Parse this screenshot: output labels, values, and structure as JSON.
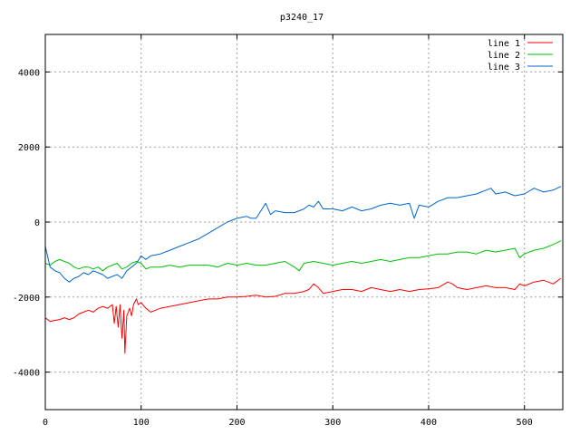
{
  "chart_data": {
    "type": "line",
    "title": "p3240_17",
    "xlabel": "",
    "ylabel": "",
    "xlim": [
      0,
      540
    ],
    "ylim": [
      -5000,
      5000
    ],
    "x_ticks": [
      0,
      100,
      200,
      300,
      400,
      500
    ],
    "y_ticks": [
      -4000,
      -2000,
      0,
      2000,
      4000
    ],
    "x_tick_labels": [
      "0",
      "100",
      "200",
      "300",
      "400",
      "500"
    ],
    "y_tick_labels": [
      "-4000",
      "-2000",
      "0",
      "2000",
      "4000"
    ],
    "grid": true,
    "legend_position": "top-right",
    "series": [
      {
        "name": "line 1",
        "color": "#ff0000",
        "points": [
          [
            0,
            -2550
          ],
          [
            5,
            -2650
          ],
          [
            10,
            -2620
          ],
          [
            15,
            -2600
          ],
          [
            20,
            -2550
          ],
          [
            25,
            -2600
          ],
          [
            30,
            -2550
          ],
          [
            35,
            -2450
          ],
          [
            40,
            -2400
          ],
          [
            45,
            -2350
          ],
          [
            50,
            -2400
          ],
          [
            55,
            -2300
          ],
          [
            60,
            -2250
          ],
          [
            65,
            -2300
          ],
          [
            70,
            -2200
          ],
          [
            72,
            -2700
          ],
          [
            74,
            -2250
          ],
          [
            76,
            -2800
          ],
          [
            78,
            -2200
          ],
          [
            80,
            -3100
          ],
          [
            82,
            -2350
          ],
          [
            83,
            -3500
          ],
          [
            85,
            -2500
          ],
          [
            88,
            -2300
          ],
          [
            90,
            -2500
          ],
          [
            92,
            -2200
          ],
          [
            95,
            -2050
          ],
          [
            97,
            -2200
          ],
          [
            100,
            -2150
          ],
          [
            105,
            -2300
          ],
          [
            110,
            -2400
          ],
          [
            115,
            -2350
          ],
          [
            120,
            -2300
          ],
          [
            130,
            -2250
          ],
          [
            140,
            -2200
          ],
          [
            150,
            -2150
          ],
          [
            160,
            -2100
          ],
          [
            170,
            -2050
          ],
          [
            180,
            -2050
          ],
          [
            190,
            -2000
          ],
          [
            200,
            -2000
          ],
          [
            210,
            -1980
          ],
          [
            220,
            -1950
          ],
          [
            230,
            -2000
          ],
          [
            240,
            -1980
          ],
          [
            250,
            -1900
          ],
          [
            260,
            -1900
          ],
          [
            270,
            -1850
          ],
          [
            275,
            -1800
          ],
          [
            280,
            -1650
          ],
          [
            285,
            -1750
          ],
          [
            290,
            -1900
          ],
          [
            300,
            -1850
          ],
          [
            310,
            -1800
          ],
          [
            320,
            -1800
          ],
          [
            330,
            -1850
          ],
          [
            340,
            -1750
          ],
          [
            350,
            -1800
          ],
          [
            360,
            -1850
          ],
          [
            370,
            -1800
          ],
          [
            380,
            -1850
          ],
          [
            390,
            -1800
          ],
          [
            400,
            -1780
          ],
          [
            410,
            -1750
          ],
          [
            420,
            -1600
          ],
          [
            425,
            -1650
          ],
          [
            430,
            -1750
          ],
          [
            440,
            -1800
          ],
          [
            450,
            -1750
          ],
          [
            460,
            -1700
          ],
          [
            470,
            -1750
          ],
          [
            480,
            -1750
          ],
          [
            490,
            -1800
          ],
          [
            495,
            -1650
          ],
          [
            500,
            -1700
          ],
          [
            510,
            -1600
          ],
          [
            520,
            -1550
          ],
          [
            530,
            -1650
          ],
          [
            538,
            -1500
          ]
        ]
      },
      {
        "name": "line 2",
        "color": "#00c000",
        "points": [
          [
            0,
            -1100
          ],
          [
            5,
            -1150
          ],
          [
            10,
            -1050
          ],
          [
            15,
            -1000
          ],
          [
            20,
            -1050
          ],
          [
            25,
            -1100
          ],
          [
            30,
            -1200
          ],
          [
            35,
            -1250
          ],
          [
            40,
            -1200
          ],
          [
            45,
            -1200
          ],
          [
            50,
            -1250
          ],
          [
            55,
            -1200
          ],
          [
            60,
            -1300
          ],
          [
            65,
            -1200
          ],
          [
            70,
            -1150
          ],
          [
            75,
            -1100
          ],
          [
            80,
            -1250
          ],
          [
            85,
            -1200
          ],
          [
            90,
            -1100
          ],
          [
            95,
            -1050
          ],
          [
            100,
            -1100
          ],
          [
            105,
            -1250
          ],
          [
            110,
            -1200
          ],
          [
            120,
            -1200
          ],
          [
            130,
            -1150
          ],
          [
            140,
            -1200
          ],
          [
            150,
            -1150
          ],
          [
            160,
            -1150
          ],
          [
            170,
            -1150
          ],
          [
            180,
            -1200
          ],
          [
            190,
            -1100
          ],
          [
            200,
            -1150
          ],
          [
            210,
            -1100
          ],
          [
            220,
            -1150
          ],
          [
            230,
            -1150
          ],
          [
            240,
            -1100
          ],
          [
            250,
            -1050
          ],
          [
            260,
            -1200
          ],
          [
            265,
            -1300
          ],
          [
            270,
            -1100
          ],
          [
            280,
            -1050
          ],
          [
            290,
            -1100
          ],
          [
            300,
            -1150
          ],
          [
            310,
            -1100
          ],
          [
            320,
            -1050
          ],
          [
            330,
            -1100
          ],
          [
            340,
            -1050
          ],
          [
            350,
            -1000
          ],
          [
            360,
            -1050
          ],
          [
            370,
            -1000
          ],
          [
            380,
            -950
          ],
          [
            390,
            -950
          ],
          [
            400,
            -900
          ],
          [
            410,
            -850
          ],
          [
            420,
            -850
          ],
          [
            430,
            -800
          ],
          [
            440,
            -800
          ],
          [
            450,
            -850
          ],
          [
            460,
            -750
          ],
          [
            470,
            -800
          ],
          [
            480,
            -750
          ],
          [
            490,
            -700
          ],
          [
            495,
            -950
          ],
          [
            500,
            -850
          ],
          [
            510,
            -750
          ],
          [
            520,
            -700
          ],
          [
            530,
            -600
          ],
          [
            538,
            -500
          ]
        ]
      },
      {
        "name": "line 3",
        "color": "#0066cc",
        "points": [
          [
            0,
            -650
          ],
          [
            5,
            -1200
          ],
          [
            10,
            -1300
          ],
          [
            15,
            -1350
          ],
          [
            20,
            -1500
          ],
          [
            25,
            -1600
          ],
          [
            30,
            -1500
          ],
          [
            35,
            -1450
          ],
          [
            40,
            -1350
          ],
          [
            45,
            -1400
          ],
          [
            50,
            -1300
          ],
          [
            55,
            -1350
          ],
          [
            60,
            -1400
          ],
          [
            65,
            -1500
          ],
          [
            70,
            -1450
          ],
          [
            75,
            -1400
          ],
          [
            80,
            -1500
          ],
          [
            85,
            -1300
          ],
          [
            90,
            -1200
          ],
          [
            95,
            -1100
          ],
          [
            100,
            -900
          ],
          [
            105,
            -1000
          ],
          [
            110,
            -900
          ],
          [
            120,
            -850
          ],
          [
            130,
            -750
          ],
          [
            140,
            -650
          ],
          [
            150,
            -550
          ],
          [
            160,
            -450
          ],
          [
            170,
            -300
          ],
          [
            180,
            -150
          ],
          [
            190,
            0
          ],
          [
            200,
            100
          ],
          [
            210,
            150
          ],
          [
            215,
            100
          ],
          [
            220,
            100
          ],
          [
            225,
            300
          ],
          [
            230,
            500
          ],
          [
            235,
            200
          ],
          [
            240,
            300
          ],
          [
            250,
            250
          ],
          [
            260,
            250
          ],
          [
            270,
            350
          ],
          [
            275,
            450
          ],
          [
            280,
            400
          ],
          [
            285,
            550
          ],
          [
            290,
            350
          ],
          [
            300,
            350
          ],
          [
            310,
            300
          ],
          [
            320,
            400
          ],
          [
            330,
            300
          ],
          [
            340,
            350
          ],
          [
            350,
            450
          ],
          [
            360,
            500
          ],
          [
            370,
            450
          ],
          [
            380,
            500
          ],
          [
            385,
            100
          ],
          [
            390,
            450
          ],
          [
            400,
            400
          ],
          [
            410,
            550
          ],
          [
            420,
            650
          ],
          [
            430,
            650
          ],
          [
            440,
            700
          ],
          [
            450,
            750
          ],
          [
            460,
            850
          ],
          [
            465,
            900
          ],
          [
            470,
            750
          ],
          [
            480,
            800
          ],
          [
            490,
            700
          ],
          [
            500,
            750
          ],
          [
            510,
            900
          ],
          [
            520,
            800
          ],
          [
            530,
            850
          ],
          [
            538,
            950
          ]
        ]
      }
    ]
  }
}
